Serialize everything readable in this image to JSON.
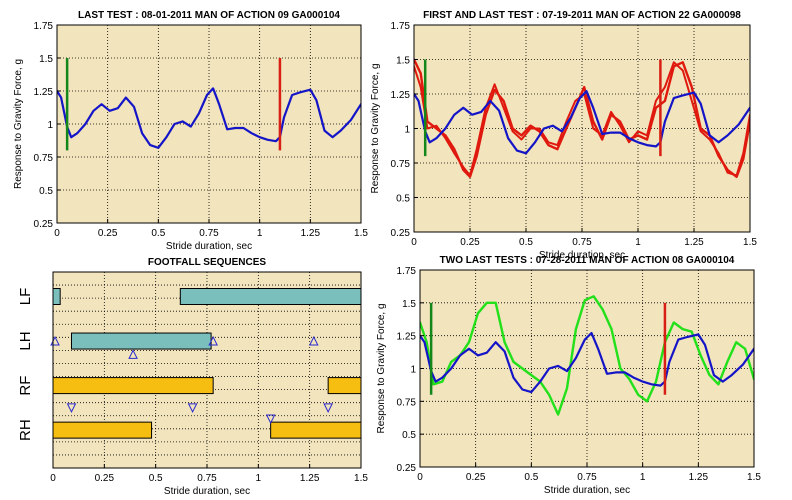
{
  "colors": {
    "plot_bg": "#f2e4bd",
    "grid": "#000000",
    "blue": "#1515c8",
    "red": "#e0190f",
    "green": "#22e01a",
    "marker_green": "#13871a",
    "marker_red": "#d81f14",
    "teal": "#7bbfbd",
    "orange": "#f7be12"
  },
  "chart_data": [
    {
      "id": "p1",
      "type": "line",
      "title": "LAST TEST : 08-01-2011 MAN OF ACTION 09 GA000104",
      "xlabel": "Stride duration, sec",
      "ylabel": "Response to Gravity Force, g",
      "xlim": [
        0,
        1.5
      ],
      "ylim": [
        0.25,
        1.75
      ],
      "xticks": [
        "0",
        "0.25",
        "0.5",
        "0.75",
        "1",
        "1.25",
        "1.5"
      ],
      "yticks": [
        "0.25",
        "0.5",
        "0.75",
        "1",
        "1.25",
        "1.5",
        "1.75"
      ],
      "grid": true,
      "markers": [
        {
          "x": 0.05,
          "y0": 0.8,
          "y1": 1.5,
          "color": "marker_green"
        },
        {
          "x": 1.1,
          "y0": 0.8,
          "y1": 1.5,
          "color": "marker_red"
        }
      ],
      "series": [
        {
          "color": "blue",
          "width": 2.2,
          "x": [
            0,
            0.02,
            0.05,
            0.07,
            0.1,
            0.14,
            0.18,
            0.22,
            0.26,
            0.3,
            0.34,
            0.38,
            0.42,
            0.46,
            0.5,
            0.54,
            0.58,
            0.62,
            0.66,
            0.7,
            0.74,
            0.77,
            0.8,
            0.84,
            0.88,
            0.92,
            0.96,
            1.0,
            1.04,
            1.08,
            1.1,
            1.12,
            1.16,
            1.2,
            1.25,
            1.28,
            1.32,
            1.36,
            1.4,
            1.45,
            1.5
          ],
          "y": [
            1.25,
            1.2,
            0.98,
            0.9,
            0.93,
            1.0,
            1.1,
            1.15,
            1.1,
            1.12,
            1.2,
            1.13,
            0.93,
            0.84,
            0.82,
            0.9,
            1.0,
            1.02,
            0.98,
            1.08,
            1.22,
            1.27,
            1.15,
            0.96,
            0.97,
            0.97,
            0.93,
            0.9,
            0.88,
            0.87,
            0.9,
            1.05,
            1.22,
            1.24,
            1.26,
            1.18,
            0.95,
            0.9,
            0.95,
            1.03,
            1.15
          ]
        }
      ]
    },
    {
      "id": "p2",
      "type": "line",
      "title": "FIRST AND LAST TEST : 07-19-2011 MAN OF ACTION 22 GA000098",
      "xlabel": "Stride duration, sec",
      "ylabel": "Response to Gravity Force, g",
      "xlim": [
        0,
        1.5
      ],
      "ylim": [
        0.25,
        1.75
      ],
      "xticks": [
        "0",
        "0.25",
        "0.5",
        "0.75",
        "1",
        "1.25",
        "1.5"
      ],
      "yticks": [
        "0.25",
        "0.5",
        "0.75",
        "1",
        "1.25",
        "1.5",
        "1.75"
      ],
      "grid": true,
      "markers": [
        {
          "x": 0.05,
          "y0": 0.8,
          "y1": 1.5,
          "color": "marker_green"
        },
        {
          "x": 1.1,
          "y0": 0.8,
          "y1": 1.5,
          "color": "marker_red"
        }
      ],
      "series": [
        {
          "color": "red",
          "width": 2.4,
          "x": [
            0,
            0.03,
            0.06,
            0.1,
            0.14,
            0.18,
            0.22,
            0.25,
            0.28,
            0.32,
            0.36,
            0.4,
            0.44,
            0.48,
            0.52,
            0.56,
            0.6,
            0.64,
            0.68,
            0.72,
            0.76,
            0.8,
            0.84,
            0.88,
            0.92,
            0.96,
            1.0,
            1.04,
            1.08,
            1.12,
            1.16,
            1.2,
            1.24,
            1.28,
            1.32,
            1.36,
            1.4,
            1.44,
            1.47,
            1.5
          ],
          "y": [
            1.5,
            1.4,
            1.05,
            1.0,
            0.95,
            0.85,
            0.7,
            0.65,
            0.8,
            1.1,
            1.28,
            1.2,
            1.0,
            0.95,
            1.02,
            0.98,
            0.88,
            0.85,
            1.0,
            1.15,
            1.3,
            1.05,
            0.92,
            1.1,
            1.05,
            0.92,
            0.95,
            0.92,
            1.15,
            1.2,
            1.45,
            1.48,
            1.3,
            1.0,
            0.95,
            0.8,
            0.7,
            0.65,
            0.78,
            1.05
          ]
        },
        {
          "color": "red",
          "width": 2.0,
          "x": [
            0,
            0.03,
            0.06,
            0.1,
            0.14,
            0.18,
            0.22,
            0.25,
            0.28,
            0.32,
            0.36,
            0.4,
            0.44,
            0.48,
            0.52,
            0.56,
            0.6,
            0.64,
            0.68,
            0.72,
            0.76,
            0.8,
            0.84,
            0.88,
            0.92,
            0.96,
            1.0,
            1.04,
            1.08,
            1.12,
            1.16,
            1.2,
            1.24,
            1.28,
            1.32,
            1.36,
            1.4,
            1.44,
            1.47,
            1.5
          ],
          "y": [
            1.45,
            1.3,
            1.0,
            1.02,
            0.93,
            0.82,
            0.72,
            0.66,
            0.85,
            1.15,
            1.32,
            1.15,
            0.98,
            0.92,
            1.0,
            1.0,
            0.9,
            0.88,
            1.05,
            1.2,
            1.25,
            1.0,
            0.95,
            1.12,
            1.02,
            0.9,
            0.98,
            0.95,
            1.2,
            1.3,
            1.48,
            1.42,
            1.2,
            0.98,
            0.92,
            0.82,
            0.68,
            0.66,
            0.82,
            1.1
          ]
        },
        {
          "color": "blue",
          "width": 2.2,
          "x": [
            0,
            0.02,
            0.05,
            0.07,
            0.1,
            0.14,
            0.18,
            0.22,
            0.26,
            0.3,
            0.34,
            0.38,
            0.42,
            0.46,
            0.5,
            0.54,
            0.58,
            0.62,
            0.66,
            0.7,
            0.74,
            0.77,
            0.8,
            0.84,
            0.88,
            0.92,
            0.96,
            1.0,
            1.04,
            1.08,
            1.1,
            1.12,
            1.16,
            1.2,
            1.25,
            1.28,
            1.32,
            1.36,
            1.4,
            1.45,
            1.5
          ],
          "y": [
            1.25,
            1.2,
            0.98,
            0.9,
            0.93,
            1.0,
            1.1,
            1.15,
            1.1,
            1.12,
            1.2,
            1.13,
            0.93,
            0.84,
            0.82,
            0.9,
            1.0,
            1.02,
            0.98,
            1.08,
            1.22,
            1.27,
            1.15,
            0.96,
            0.97,
            0.97,
            0.93,
            0.9,
            0.88,
            0.87,
            0.9,
            1.05,
            1.22,
            1.24,
            1.26,
            1.18,
            0.95,
            0.9,
            0.95,
            1.03,
            1.15
          ]
        }
      ]
    },
    {
      "id": "p3",
      "type": "bar",
      "title": "FOOTFALL SEQUENCES",
      "xlabel": "Stride duration, sec",
      "xlim": [
        0,
        1.5
      ],
      "xticks": [
        "0",
        "0.25",
        "0.5",
        "0.75",
        "1",
        "1.25",
        "1.5"
      ],
      "grid": true,
      "lanes": [
        "LF",
        "LH",
        "RF",
        "RH"
      ],
      "bars": [
        {
          "lane": "LF",
          "start": 0.0,
          "end": 0.035,
          "color": "teal"
        },
        {
          "lane": "LF",
          "start": 0.62,
          "end": 1.5,
          "color": "teal"
        },
        {
          "lane": "LH",
          "start": 0.09,
          "end": 0.77,
          "color": "teal"
        },
        {
          "lane": "RF",
          "start": 0.0,
          "end": 0.78,
          "color": "orange"
        },
        {
          "lane": "RF",
          "start": 1.34,
          "end": 1.5,
          "color": "orange"
        },
        {
          "lane": "RH",
          "start": 0.0,
          "end": 0.48,
          "color": "orange"
        },
        {
          "lane": "RH",
          "start": 1.06,
          "end": 1.5,
          "color": "orange"
        }
      ],
      "triangles": [
        {
          "x": 0.01,
          "lane": "LH",
          "dir": "up"
        },
        {
          "x": 0.39,
          "lane": "LH",
          "dir": "up",
          "offset": 0.55
        },
        {
          "x": 0.78,
          "lane": "LH",
          "dir": "up"
        },
        {
          "x": 1.27,
          "lane": "LH",
          "dir": "up"
        },
        {
          "x": 0.09,
          "lane": "RF",
          "dir": "down",
          "offset": 0.5
        },
        {
          "x": 0.68,
          "lane": "RF",
          "dir": "down",
          "offset": 0.5
        },
        {
          "x": 1.06,
          "lane": "RF",
          "dir": "down",
          "offset": 0.75
        },
        {
          "x": 1.34,
          "lane": "RF",
          "dir": "down",
          "offset": 0.5
        }
      ]
    },
    {
      "id": "p4",
      "type": "line",
      "title": "TWO LAST TESTS : 07-28-2011 MAN OF ACTION 08 GA000104",
      "xlabel": "Stride duration, sec",
      "ylabel": "Response to Gravity Force, g",
      "xlim": [
        0,
        1.5
      ],
      "ylim": [
        0.25,
        1.75
      ],
      "xticks": [
        "0",
        "0.25",
        "0.5",
        "0.75",
        "1",
        "1.25",
        "1.5"
      ],
      "yticks": [
        "0.25",
        "0.5",
        "0.75",
        "1",
        "1.25",
        "1.5",
        "1.75"
      ],
      "grid": true,
      "markers": [
        {
          "x": 0.05,
          "y0": 0.8,
          "y1": 1.5,
          "color": "marker_green"
        },
        {
          "x": 1.1,
          "y0": 0.8,
          "y1": 1.5,
          "color": "marker_red"
        }
      ],
      "series": [
        {
          "color": "green",
          "width": 2.4,
          "x": [
            0,
            0.03,
            0.06,
            0.1,
            0.14,
            0.18,
            0.22,
            0.26,
            0.3,
            0.34,
            0.38,
            0.42,
            0.46,
            0.5,
            0.54,
            0.58,
            0.62,
            0.66,
            0.7,
            0.74,
            0.78,
            0.82,
            0.86,
            0.9,
            0.94,
            0.98,
            1.02,
            1.06,
            1.1,
            1.14,
            1.18,
            1.22,
            1.26,
            1.3,
            1.34,
            1.38,
            1.42,
            1.46,
            1.5
          ],
          "y": [
            1.35,
            1.2,
            0.88,
            0.9,
            1.05,
            1.1,
            1.2,
            1.42,
            1.5,
            1.5,
            1.2,
            1.05,
            1.0,
            0.95,
            0.9,
            0.8,
            0.65,
            0.85,
            1.3,
            1.52,
            1.55,
            1.45,
            1.3,
            1.0,
            0.92,
            0.8,
            0.75,
            0.9,
            1.2,
            1.35,
            1.3,
            1.28,
            1.1,
            0.95,
            0.88,
            1.05,
            1.2,
            1.15,
            0.92
          ]
        },
        {
          "color": "blue",
          "width": 2.2,
          "x": [
            0,
            0.02,
            0.05,
            0.07,
            0.1,
            0.14,
            0.18,
            0.22,
            0.26,
            0.3,
            0.34,
            0.38,
            0.42,
            0.46,
            0.5,
            0.54,
            0.58,
            0.62,
            0.66,
            0.7,
            0.74,
            0.77,
            0.8,
            0.84,
            0.88,
            0.92,
            0.96,
            1.0,
            1.04,
            1.08,
            1.1,
            1.12,
            1.16,
            1.2,
            1.25,
            1.28,
            1.32,
            1.36,
            1.4,
            1.45,
            1.5
          ],
          "y": [
            1.25,
            1.2,
            0.98,
            0.9,
            0.93,
            1.0,
            1.1,
            1.15,
            1.1,
            1.12,
            1.2,
            1.13,
            0.93,
            0.84,
            0.82,
            0.9,
            1.0,
            1.02,
            0.98,
            1.08,
            1.22,
            1.27,
            1.15,
            0.96,
            0.97,
            0.97,
            0.93,
            0.9,
            0.88,
            0.87,
            0.9,
            1.05,
            1.22,
            1.24,
            1.26,
            1.18,
            0.95,
            0.9,
            0.95,
            1.03,
            1.15
          ]
        }
      ]
    }
  ]
}
